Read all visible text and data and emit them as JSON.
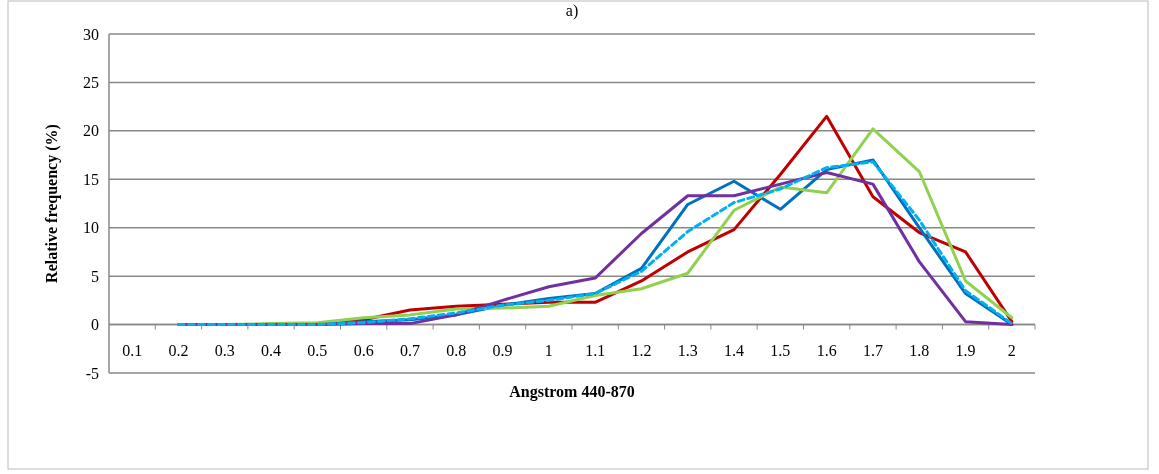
{
  "chart_data": {
    "type": "line",
    "title": "a)",
    "xlabel": "Angstrom 440-870",
    "ylabel": "Relative frequency (%)",
    "categories": [
      "0.1",
      "0.2",
      "0.3",
      "0.4",
      "0.5",
      "0.6",
      "0.7",
      "0.8",
      "0.9",
      "1",
      "1.1",
      "1.2",
      "1.3",
      "1.4",
      "1.5",
      "1.6",
      "1.7",
      "1.8",
      "1.9",
      "2"
    ],
    "series": [
      {
        "color": "#c00000",
        "values": [
          null,
          null,
          null,
          null,
          0,
          0.5,
          1.5,
          1.9,
          2.1,
          2.3,
          2.3,
          4.5,
          7.5,
          9.8,
          15.5,
          21.5,
          13.2,
          9.5,
          7.5,
          0.3
        ]
      },
      {
        "color": "#0070c0",
        "values": [
          null,
          null,
          null,
          0,
          0,
          0.3,
          0.5,
          1.0,
          2.0,
          2.7,
          3.2,
          5.8,
          12.4,
          14.8,
          11.9,
          16,
          17,
          10,
          3.2,
          0
        ]
      },
      {
        "color": "#92d050",
        "values": [
          null,
          0,
          0,
          0.1,
          0.2,
          0.7,
          1.0,
          1.6,
          1.7,
          1.9,
          3.0,
          3.7,
          5.3,
          11.8,
          14.2,
          13.6,
          20.2,
          15.8,
          4.5,
          0.7
        ]
      },
      {
        "color": "#7030a0",
        "values": [
          null,
          0,
          0,
          0,
          0,
          0.1,
          0.1,
          1.0,
          2.5,
          3.9,
          4.8,
          9.4,
          13.3,
          13.3,
          14.5,
          15.7,
          14.5,
          6.5,
          0.3,
          0
        ]
      },
      {
        "color": "#00b0f0",
        "line_style": "dashed",
        "values": [
          null,
          0,
          0,
          0,
          0,
          0.2,
          0.6,
          1.2,
          2.0,
          2.5,
          3.2,
          5.5,
          9.6,
          12.6,
          14,
          16.2,
          16.8,
          10.8,
          3.5,
          0.1
        ]
      }
    ],
    "ylim": [
      -5,
      30
    ],
    "yticks": [
      -5,
      0,
      5,
      10,
      15,
      20,
      25,
      30
    ],
    "grid": "y",
    "marker": "none",
    "line_style": "solid"
  }
}
